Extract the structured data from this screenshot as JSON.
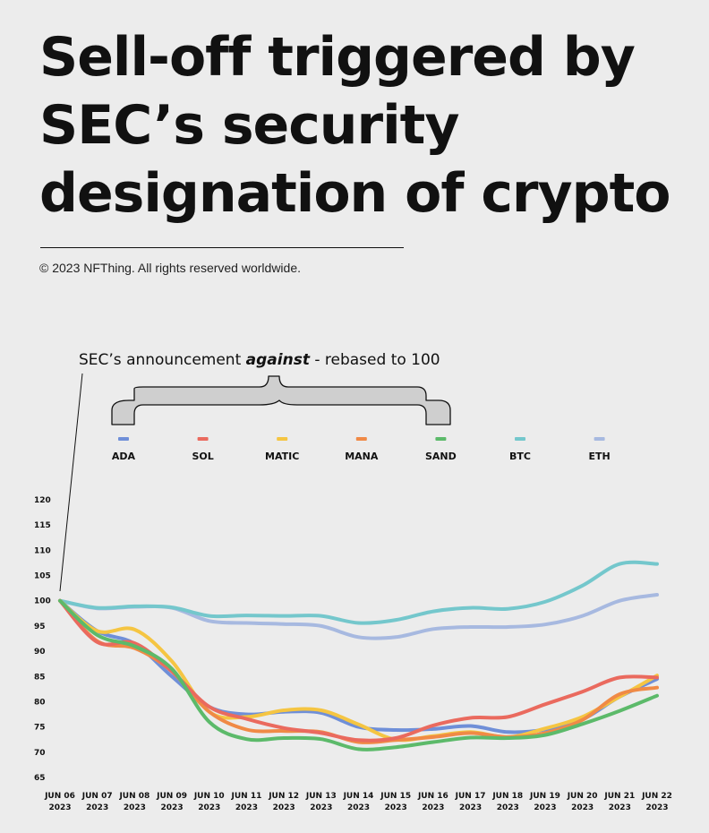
{
  "header": {
    "title": "Sell-off triggered by SEC’s security designation of crypto",
    "copyright": "© 2023 NFThing. All rights reserved worldwide."
  },
  "annotation": {
    "prefix": "SEC’s announcement ",
    "emphasis": "against",
    "suffix": " - rebased to 100"
  },
  "chart_data": {
    "type": "line",
    "title": "Sell-off triggered by SEC’s security designation of crypto",
    "xlabel": "",
    "ylabel": "",
    "ylim": [
      65,
      120
    ],
    "yticks": [
      65,
      70,
      75,
      80,
      85,
      90,
      95,
      100,
      105,
      110,
      115,
      120
    ],
    "grid": false,
    "legend_position": "top",
    "categories": [
      [
        "JUN 06",
        "2023"
      ],
      [
        "JUN 07",
        "2023"
      ],
      [
        "JUN 08",
        "2023"
      ],
      [
        "JUN 09",
        "2023"
      ],
      [
        "JUN 10",
        "2023"
      ],
      [
        "JUN 11",
        "2023"
      ],
      [
        "JUN 12",
        "2023"
      ],
      [
        "JUN 13",
        "2023"
      ],
      [
        "JUN 14",
        "2023"
      ],
      [
        "JUN 15",
        "2023"
      ],
      [
        "JUN 16",
        "2023"
      ],
      [
        "JUN 17",
        "2023"
      ],
      [
        "JUN 18",
        "2023"
      ],
      [
        "JUN 19",
        "2023"
      ],
      [
        "JUN 20",
        "2023"
      ],
      [
        "JUN 21",
        "2023"
      ],
      [
        "JUN 22",
        "2023"
      ]
    ],
    "series": [
      {
        "name": "ETH",
        "color": "#a7b9e0",
        "values": [
          100,
          98.5,
          98.8,
          98.6,
          96,
          95.6,
          95.4,
          95,
          92.8,
          92.8,
          94.4,
          94.8,
          94.8,
          95.3,
          97,
          100,
          101.2
        ]
      },
      {
        "name": "BTC",
        "color": "#74c7cc",
        "values": [
          100,
          98.6,
          98.9,
          98.7,
          97,
          97.1,
          97,
          97,
          95.6,
          96.2,
          97.9,
          98.6,
          98.4,
          99.8,
          103,
          107.3,
          107.3
        ]
      },
      {
        "name": "ADA",
        "color": "#6f8fd8",
        "values": [
          100,
          94,
          91.5,
          85,
          79,
          77.5,
          78,
          77.8,
          75,
          74.4,
          74.6,
          75.2,
          74,
          74.5,
          76.5,
          81,
          84.5
        ]
      },
      {
        "name": "MATIC",
        "color": "#f5c542",
        "values": [
          100,
          94,
          94.3,
          88,
          78,
          77,
          78.3,
          78.3,
          75.5,
          72.5,
          73.2,
          74,
          73,
          74.7,
          77,
          81,
          85.2
        ]
      },
      {
        "name": "MANA",
        "color": "#f08a46",
        "values": [
          100,
          92,
          90.6,
          86,
          78,
          74.5,
          74.2,
          74,
          72,
          72.4,
          73,
          73.8,
          73,
          73.8,
          76.4,
          81.5,
          82.8
        ]
      },
      {
        "name": "SOL",
        "color": "#ea6a5e",
        "values": [
          100,
          91.8,
          91.6,
          86,
          79,
          76.6,
          74.8,
          73.8,
          72.4,
          72.8,
          75.3,
          76.8,
          77,
          79.5,
          82,
          84.8,
          84.8
        ]
      },
      {
        "name": "SAND",
        "color": "#5cba6a",
        "values": [
          100,
          93.2,
          91,
          86.5,
          76,
          72.6,
          72.8,
          72.6,
          70.6,
          71,
          72,
          72.9,
          72.8,
          73.4,
          75.6,
          78.2,
          81.2
        ]
      }
    ]
  },
  "legend": [
    {
      "name": "ADA",
      "color": "#6f8fd8"
    },
    {
      "name": "SOL",
      "color": "#ea6a5e"
    },
    {
      "name": "MATIC",
      "color": "#f5c542"
    },
    {
      "name": "MANA",
      "color": "#f08a46"
    },
    {
      "name": "SAND",
      "color": "#5cba6a"
    },
    {
      "name": "BTC",
      "color": "#74c7cc"
    },
    {
      "name": "ETH",
      "color": "#a7b9e0"
    }
  ]
}
